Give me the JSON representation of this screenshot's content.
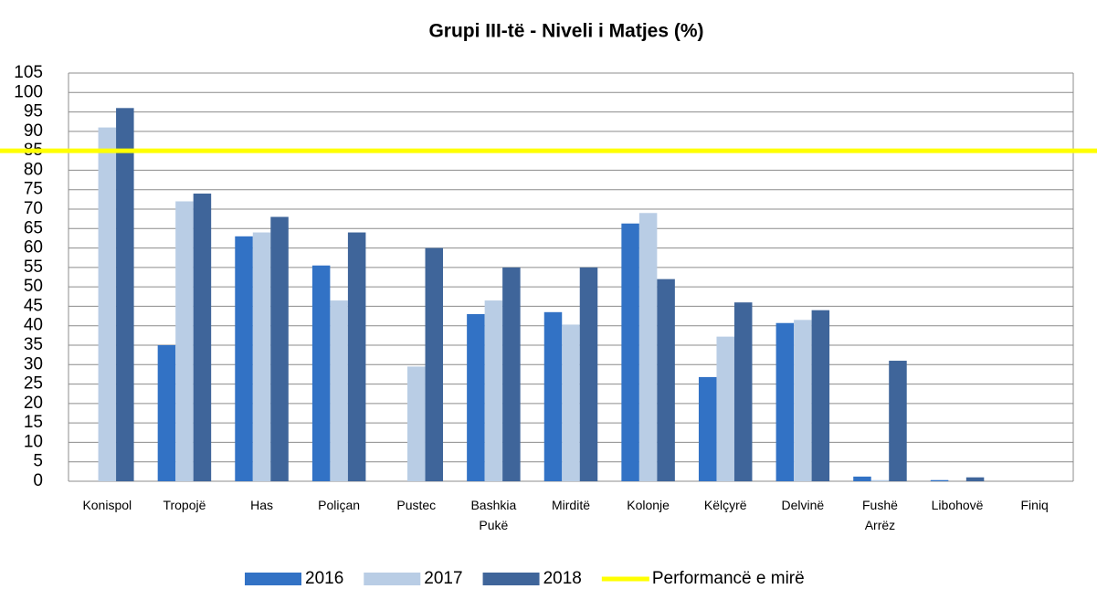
{
  "chart_data": {
    "type": "bar",
    "title": "Grupi III-të - Niveli i Matjes (%)",
    "categories": [
      "Konispol",
      "Tropojë",
      "Has",
      "Poliçan",
      "Pustec",
      "Bashkia Pukë",
      "Mirditë",
      "Kolonje",
      "Këlçyrë",
      "Delvinë",
      "Fushë Arrëz",
      "Libohovë",
      "Finiq"
    ],
    "series": [
      {
        "name": "2016",
        "color": "#3272c5",
        "values": [
          0,
          35,
          63,
          55.5,
          0,
          43,
          43.5,
          66.3,
          26.8,
          40.7,
          1.2,
          0.3,
          0
        ]
      },
      {
        "name": "2017",
        "color": "#b9cde5",
        "values": [
          91,
          72,
          64,
          46.5,
          29.5,
          46.5,
          40.3,
          69,
          37.2,
          41.5,
          0.3,
          0,
          0
        ]
      },
      {
        "name": "2018",
        "color": "#3f659a",
        "values": [
          96,
          74,
          68,
          64,
          60,
          55,
          55,
          52,
          46,
          44,
          31,
          1,
          0
        ]
      }
    ],
    "reference_line": {
      "name": "Performancë e mirë",
      "value": 85,
      "color": "#ffff00"
    },
    "ylim": [
      0,
      105
    ],
    "yticks": [
      0,
      5,
      10,
      15,
      20,
      25,
      30,
      35,
      40,
      45,
      50,
      55,
      60,
      65,
      70,
      75,
      80,
      85,
      90,
      95,
      100,
      105
    ],
    "grid": true
  }
}
